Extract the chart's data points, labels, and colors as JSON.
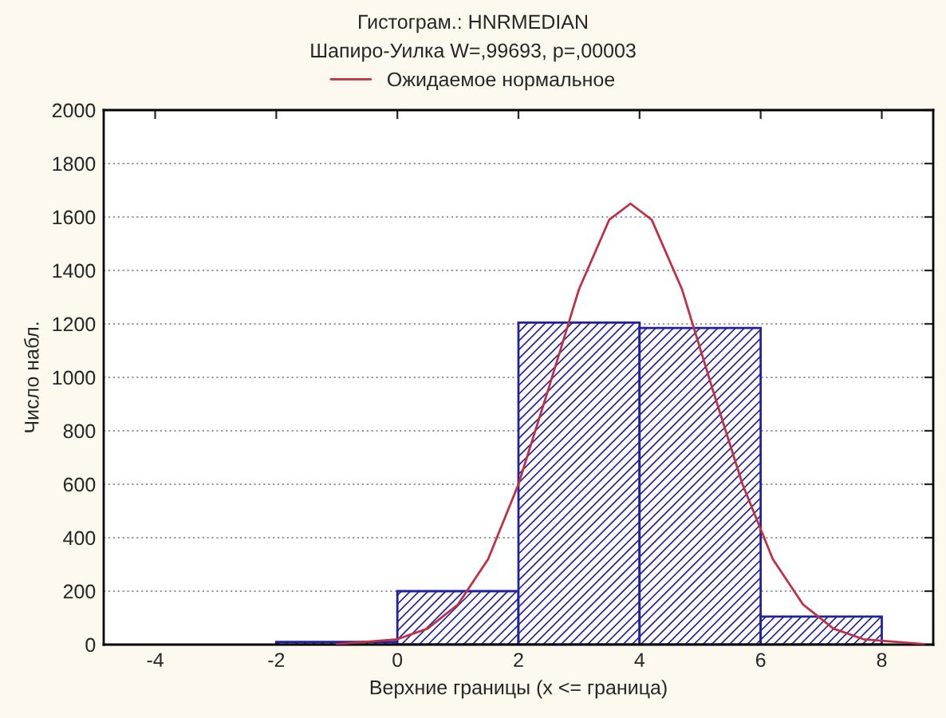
{
  "chart_data": {
    "type": "histogram",
    "title": "Гистограм.: HNRMEDIAN",
    "subtitle": "Шапиро-Уилка W=,99693, p=,00003",
    "xlabel": "Верхние границы (x <= граница)",
    "ylabel": "Число набл.",
    "bins": [
      -2,
      0,
      2,
      4,
      6,
      8
    ],
    "values": [
      10,
      200,
      1205,
      1185,
      105
    ],
    "color": "#2020a0",
    "series": [
      {
        "type": "line",
        "name": "Ожидаемое нормальное",
        "color": "#c03040",
        "x": [
          -1,
          0,
          0.5,
          1,
          1.5,
          2,
          2.5,
          3,
          3.5,
          3.85,
          4.2,
          4.7,
          5.2,
          5.7,
          6.2,
          6.7,
          7.2,
          7.7,
          8.7
        ],
        "values": [
          2,
          20,
          60,
          150,
          320,
          600,
          960,
          1330,
          1590,
          1650,
          1590,
          1330,
          960,
          600,
          320,
          150,
          60,
          20,
          2
        ]
      }
    ],
    "xlim": [
      -4.85,
      8.85
    ],
    "xticks": [
      -4,
      -2,
      0,
      2,
      4,
      6,
      8
    ],
    "ylim": [
      0,
      2000
    ],
    "yticks": [
      0,
      200,
      400,
      600,
      800,
      1000,
      1200,
      1400,
      1600,
      1800,
      2000
    ],
    "grid": "y",
    "legend": "top"
  }
}
